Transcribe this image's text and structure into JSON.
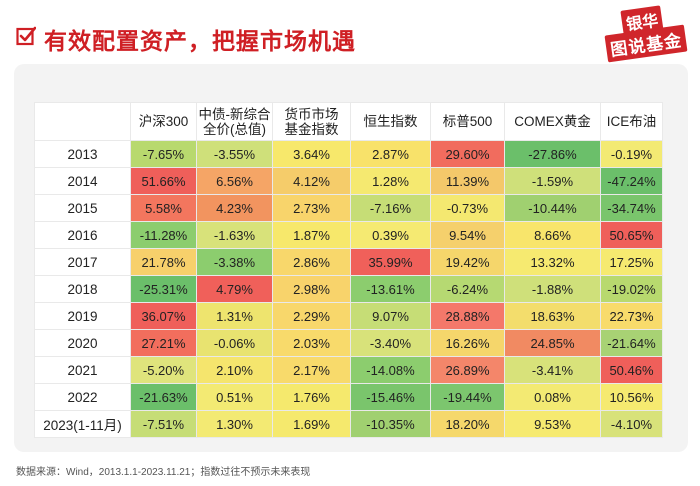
{
  "header": {
    "title": "有效配置资产，把握市场机遇",
    "logo_top": "银华",
    "logo_bottom": "图说基金"
  },
  "table": {
    "columns": [
      "沪深300",
      "中债-新综合\n全价(总值)",
      "货币市场\n基金指数",
      "恒生指数",
      "标普500",
      "COMEX黄金",
      "ICE布油"
    ],
    "rows": [
      {
        "year": "2013",
        "values": [
          "-7.65%",
          "-3.55%",
          "3.64%",
          "2.87%",
          "29.60%",
          "-27.86%",
          "-0.19%"
        ]
      },
      {
        "year": "2014",
        "values": [
          "51.66%",
          "6.56%",
          "4.12%",
          "1.28%",
          "11.39%",
          "-1.59%",
          "-47.24%"
        ]
      },
      {
        "year": "2015",
        "values": [
          "5.58%",
          "4.23%",
          "2.73%",
          "-7.16%",
          "-0.73%",
          "-10.44%",
          "-34.74%"
        ]
      },
      {
        "year": "2016",
        "values": [
          "-11.28%",
          "-1.63%",
          "1.87%",
          "0.39%",
          "9.54%",
          "8.66%",
          "50.65%"
        ]
      },
      {
        "year": "2017",
        "values": [
          "21.78%",
          "-3.38%",
          "2.86%",
          "35.99%",
          "19.42%",
          "13.32%",
          "17.25%"
        ]
      },
      {
        "year": "2018",
        "values": [
          "-25.31%",
          "4.79%",
          "2.98%",
          "-13.61%",
          "-6.24%",
          "-1.88%",
          "-19.02%"
        ]
      },
      {
        "year": "2019",
        "values": [
          "36.07%",
          "1.31%",
          "2.29%",
          "9.07%",
          "28.88%",
          "18.63%",
          "22.73%"
        ]
      },
      {
        "year": "2020",
        "values": [
          "27.21%",
          "-0.06%",
          "2.03%",
          "-3.40%",
          "16.26%",
          "24.85%",
          "-21.64%"
        ]
      },
      {
        "year": "2021",
        "values": [
          "-5.20%",
          "2.10%",
          "2.17%",
          "-14.08%",
          "26.89%",
          "-3.41%",
          "50.46%"
        ]
      },
      {
        "year": "2022",
        "values": [
          "-21.63%",
          "0.51%",
          "1.76%",
          "-15.46%",
          "-19.44%",
          "0.08%",
          "10.56%"
        ]
      },
      {
        "year": "2023(1-11月)",
        "values": [
          "-7.51%",
          "1.30%",
          "1.69%",
          "-10.35%",
          "18.20%",
          "9.53%",
          "-4.10%"
        ]
      }
    ],
    "cell_colors": [
      [
        "#b8d96e",
        "#cfe07a",
        "#f7e86b",
        "#f8e26a",
        "#f16c5e",
        "#6bbf6a",
        "#f3ea73"
      ],
      [
        "#ef5f5a",
        "#f5a566",
        "#f5cc6a",
        "#f5e970",
        "#f4c86a",
        "#cfe07a",
        "#6bbf6a"
      ],
      [
        "#f3765e",
        "#f2945f",
        "#f8d46b",
        "#c6dd76",
        "#f4e870",
        "#a0d070",
        "#7ac56c"
      ],
      [
        "#8ccd6e",
        "#d8e27a",
        "#f7e86b",
        "#f5ea72",
        "#f5d06c",
        "#f8e56b",
        "#ef5f5a"
      ],
      [
        "#f7d06b",
        "#8ccd6e",
        "#f8d76b",
        "#f0605a",
        "#f5d66b",
        "#f6ea70",
        "#f6ea70"
      ],
      [
        "#6bbf6a",
        "#f0605a",
        "#f8d36b",
        "#8ccd6e",
        "#b6d972",
        "#cfe07a",
        "#b8d96e"
      ],
      [
        "#ef5f5a",
        "#eee46e",
        "#f8d76b",
        "#c6dd76",
        "#f4786a",
        "#f3dd6c",
        "#f8db6b"
      ],
      [
        "#f26e5d",
        "#e8e370",
        "#f8da6b",
        "#d8e27a",
        "#f5d66b",
        "#f18a62",
        "#a8d274"
      ],
      [
        "#dfe47c",
        "#f5e56d",
        "#f8da6b",
        "#8ccd6e",
        "#f4866a",
        "#d8e27a",
        "#ef5f5a"
      ],
      [
        "#6bbf6a",
        "#f3ea73",
        "#f5e96d",
        "#7ac56c",
        "#7cc66e",
        "#f3ea73",
        "#f6ea70"
      ],
      [
        "#c6dd76",
        "#f3ea73",
        "#f5e96d",
        "#a0d070",
        "#f5d86b",
        "#f6ea70",
        "#d8e27a"
      ]
    ]
  },
  "footnote": "数据来源：Wind，2013.1.1-2023.11.21；指数过往不预示未来表现",
  "colors": {
    "title_red": "#cf1f24",
    "logo_red": "#d0262b",
    "check_stroke": "#cf1f24"
  }
}
